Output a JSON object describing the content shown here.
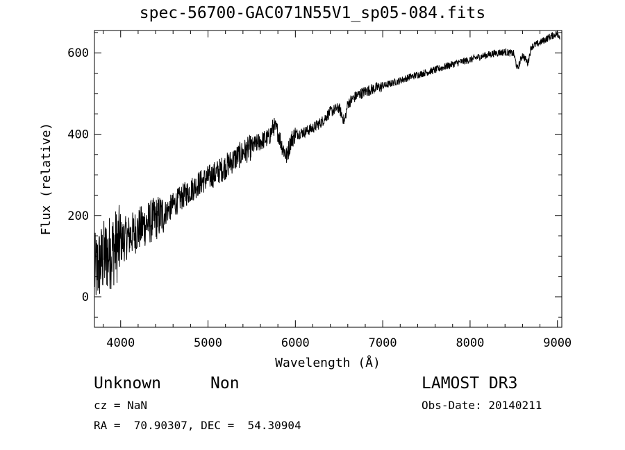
{
  "chart_data": {
    "type": "line",
    "title": "spec-56700-GAC071N55V1_sp05-084.fits",
    "xlabel": "Wavelength (Å)",
    "ylabel": "Flux (relative)",
    "xlim": [
      3700,
      9050
    ],
    "ylim": [
      -75,
      655
    ],
    "x_ticks": [
      4000,
      5000,
      6000,
      7000,
      8000,
      9000
    ],
    "y_ticks": [
      0,
      200,
      400,
      600
    ],
    "grid": false,
    "series": [
      {
        "x": [
          3700,
          3800,
          3900,
          4000,
          4100,
          4200,
          4300,
          4400,
          4500,
          4600,
          4700,
          4800,
          4900,
          5000,
          5100,
          5200,
          5300,
          5400,
          5500,
          5600,
          5700,
          5750,
          5800,
          5850,
          5900,
          5950,
          6000,
          6100,
          6200,
          6300,
          6400,
          6500,
          6562,
          6600,
          6700,
          6800,
          6900,
          7000,
          7100,
          7200,
          7300,
          7400,
          7500,
          7600,
          7700,
          7800,
          7900,
          8000,
          8100,
          8200,
          8300,
          8400,
          8500,
          8542,
          8600,
          8662,
          8700,
          8800,
          8900,
          9000,
          9030
        ],
        "y": [
          60,
          95,
          115,
          135,
          150,
          165,
          180,
          192,
          205,
          225,
          245,
          262,
          280,
          292,
          305,
          320,
          338,
          355,
          368,
          382,
          392,
          420,
          405,
          370,
          345,
          385,
          400,
          405,
          415,
          430,
          455,
          465,
          430,
          475,
          495,
          505,
          512,
          518,
          525,
          532,
          540,
          546,
          552,
          558,
          565,
          572,
          578,
          583,
          590,
          595,
          600,
          602,
          598,
          560,
          595,
          575,
          615,
          625,
          638,
          648,
          640
        ]
      }
    ]
  },
  "labels": {
    "object_class": "Unknown",
    "object_subclass": "Non",
    "survey": "LAMOST DR3",
    "redshift": "cz = NaN",
    "obs_date": "Obs-Date: 20140211",
    "coords": "RA =  70.90307, DEC =  54.30904"
  }
}
